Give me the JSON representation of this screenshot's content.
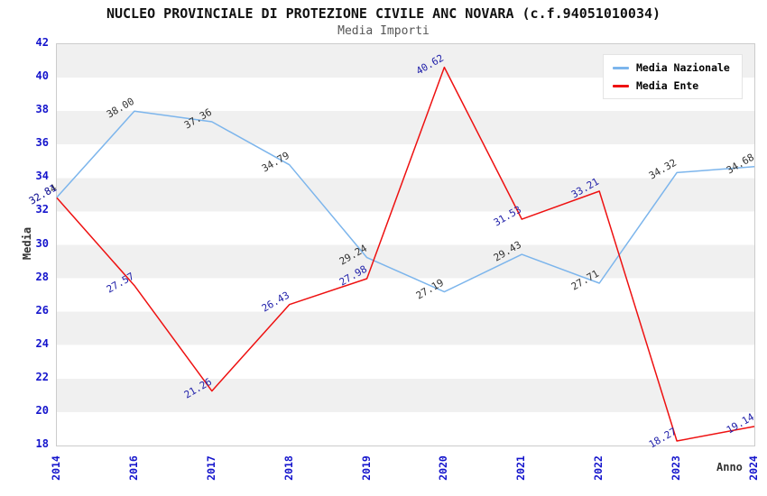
{
  "chart_data": {
    "type": "line",
    "title": "NUCLEO PROVINCIALE DI PROTEZIONE CIVILE ANC NOVARA (c.f.94051010034)",
    "subtitle": "Media Importi",
    "xlabel": "Anno",
    "ylabel": "Media",
    "ylim": [
      18,
      42
    ],
    "ytick_step": 2,
    "y_ticks": [
      42,
      40,
      38,
      36,
      34,
      32,
      30,
      28,
      26,
      24,
      22,
      20,
      18
    ],
    "categories": [
      "2014",
      "2016",
      "2017",
      "2018",
      "2019",
      "2020",
      "2021",
      "2022",
      "2023",
      "2024"
    ],
    "series": [
      {
        "name": "Media Nazionale",
        "color": "#7CB5EC",
        "label_color": "#333333",
        "values": [
          32.84,
          38.0,
          37.36,
          34.79,
          29.24,
          27.19,
          29.43,
          27.71,
          34.32,
          34.68
        ]
      },
      {
        "name": "Media Ente",
        "color": "#EE1111",
        "label_color": "#2222AA",
        "values": [
          32.81,
          27.57,
          21.26,
          26.43,
          27.98,
          40.62,
          31.53,
          33.21,
          18.27,
          19.14
        ]
      }
    ],
    "legend_position": "top-right",
    "grid": "striped",
    "stripe_colors": [
      "#F0F0F0",
      "#FFFFFF"
    ],
    "axis_label_color": "#1414CC",
    "plot_border_color": "#CCCCCC"
  }
}
